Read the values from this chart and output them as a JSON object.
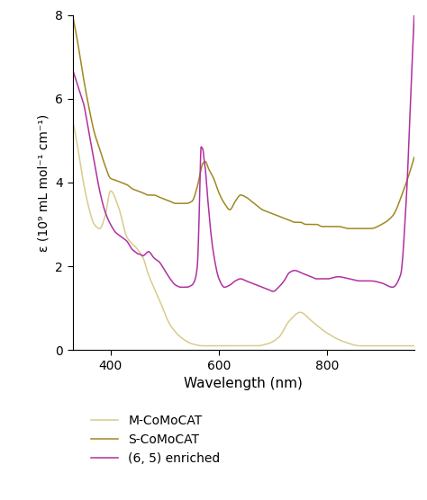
{
  "xlabel": "Wavelength (nm)",
  "ylabel": "ε (10⁹ mL mol⁻¹ cm⁻¹)",
  "xlim": [
    330,
    960
  ],
  "ylim": [
    0,
    8
  ],
  "yticks": [
    0,
    2,
    4,
    6,
    8
  ],
  "xticks": [
    400,
    600,
    800
  ],
  "colors": {
    "M-CoMoCAT": "#d8cc8a",
    "S-CoMoCAT": "#a08820",
    "65enriched": "#b030a0"
  },
  "legend": [
    "M-CoMoCAT",
    "S-CoMoCAT",
    "(6, 5) enriched"
  ],
  "background": "#ffffff",
  "m_comocat_x": [
    330,
    340,
    350,
    360,
    370,
    380,
    390,
    400,
    415,
    430,
    450,
    460,
    470,
    490,
    510,
    530,
    550,
    570,
    590,
    610,
    630,
    650,
    670,
    690,
    710,
    730,
    750,
    770,
    800,
    830,
    860,
    900,
    930,
    960
  ],
  "m_comocat_y": [
    5.5,
    4.8,
    4.0,
    3.4,
    3.0,
    2.9,
    3.2,
    3.8,
    3.4,
    2.7,
    2.4,
    2.2,
    1.8,
    1.2,
    0.6,
    0.3,
    0.15,
    0.1,
    0.1,
    0.1,
    0.1,
    0.1,
    0.1,
    0.15,
    0.3,
    0.7,
    0.9,
    0.7,
    0.4,
    0.2,
    0.1,
    0.1,
    0.1,
    0.1
  ],
  "s_comocat_x": [
    330,
    340,
    350,
    360,
    370,
    380,
    390,
    400,
    410,
    420,
    430,
    440,
    450,
    460,
    470,
    480,
    490,
    500,
    510,
    520,
    530,
    540,
    550,
    560,
    565,
    570,
    575,
    580,
    590,
    600,
    610,
    620,
    630,
    640,
    650,
    660,
    670,
    680,
    690,
    700,
    710,
    720,
    730,
    740,
    750,
    760,
    770,
    780,
    790,
    800,
    820,
    840,
    860,
    880,
    900,
    920,
    940,
    960
  ],
  "s_comocat_y": [
    8.0,
    7.3,
    6.5,
    5.8,
    5.2,
    4.8,
    4.4,
    4.1,
    4.05,
    4.0,
    3.95,
    3.85,
    3.8,
    3.75,
    3.7,
    3.7,
    3.65,
    3.6,
    3.55,
    3.5,
    3.5,
    3.5,
    3.55,
    3.9,
    4.2,
    4.45,
    4.5,
    4.35,
    4.1,
    3.75,
    3.5,
    3.35,
    3.55,
    3.7,
    3.65,
    3.55,
    3.45,
    3.35,
    3.3,
    3.25,
    3.2,
    3.15,
    3.1,
    3.05,
    3.05,
    3.0,
    3.0,
    3.0,
    2.95,
    2.95,
    2.95,
    2.9,
    2.9,
    2.9,
    3.0,
    3.2,
    3.8,
    4.6
  ],
  "e65_x": [
    330,
    335,
    340,
    345,
    350,
    360,
    370,
    380,
    390,
    400,
    410,
    415,
    420,
    430,
    440,
    445,
    450,
    455,
    460,
    465,
    470,
    480,
    490,
    500,
    510,
    520,
    530,
    540,
    550,
    555,
    560,
    563,
    565,
    567,
    570,
    573,
    575,
    578,
    580,
    585,
    590,
    600,
    610,
    620,
    630,
    640,
    650,
    660,
    670,
    680,
    690,
    700,
    710,
    720,
    730,
    740,
    750,
    760,
    770,
    780,
    800,
    820,
    840,
    860,
    880,
    900,
    920,
    935,
    945,
    955,
    960
  ],
  "e65_y": [
    6.7,
    6.5,
    6.3,
    6.1,
    5.9,
    5.2,
    4.5,
    3.8,
    3.3,
    3.0,
    2.8,
    2.75,
    2.7,
    2.6,
    2.4,
    2.35,
    2.3,
    2.28,
    2.25,
    2.3,
    2.35,
    2.2,
    2.1,
    1.9,
    1.7,
    1.55,
    1.5,
    1.5,
    1.55,
    1.65,
    2.0,
    3.0,
    4.1,
    4.85,
    4.8,
    4.5,
    4.3,
    3.8,
    3.5,
    2.8,
    2.3,
    1.7,
    1.5,
    1.55,
    1.65,
    1.7,
    1.65,
    1.6,
    1.55,
    1.5,
    1.45,
    1.4,
    1.5,
    1.65,
    1.85,
    1.9,
    1.85,
    1.8,
    1.75,
    1.7,
    1.7,
    1.75,
    1.7,
    1.65,
    1.65,
    1.6,
    1.5,
    1.8,
    3.5,
    6.5,
    8.0
  ]
}
